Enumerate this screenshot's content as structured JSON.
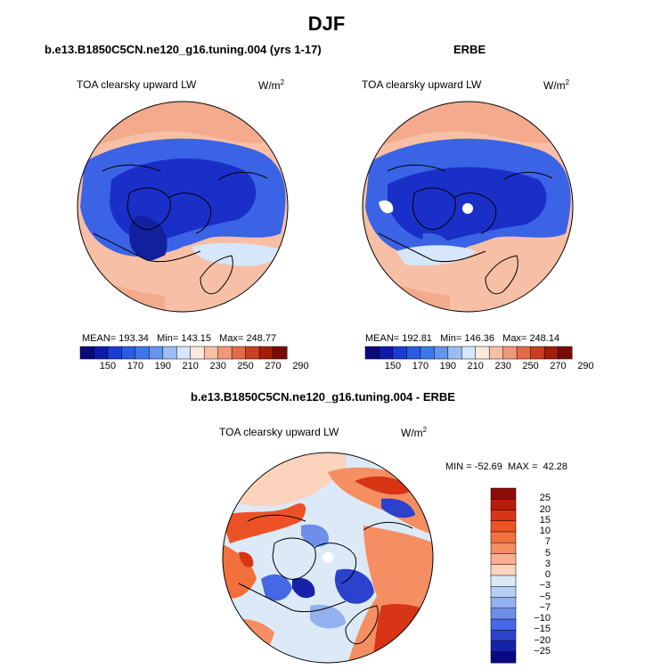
{
  "figure": {
    "title": "DJF",
    "panels": {
      "model": {
        "title": "b.e13.B1850C5CN.ne120_g16.tuning.004 (yrs 1-17)",
        "variable": "TOA clearsky upward LW",
        "units_text": "W/m",
        "units_exp": "2",
        "stats": {
          "mean_label": "MEAN=",
          "mean": "193.34",
          "min_label": "Min=",
          "min": "143.15",
          "max_label": "Max=",
          "max": "248.77"
        }
      },
      "obs": {
        "title": "ERBE",
        "variable": "TOA clearsky upward LW",
        "units_text": "W/m",
        "units_exp": "2",
        "stats": {
          "mean_label": "MEAN=",
          "mean": "192.81",
          "min_label": "Min=",
          "min": "146.36",
          "max_label": "Max=",
          "max": "248.14"
        }
      },
      "diff": {
        "title": "b.e13.B1850C5CN.ne120_g16.tuning.004 - ERBE",
        "variable": "TOA clearsky upward LW",
        "units_text": "W/m",
        "units_exp": "2",
        "stats": {
          "min_label": "MIN =",
          "min": "-52.69",
          "max_label": "MAX =",
          "max": "42.28"
        }
      }
    },
    "colorbar_fields": {
      "ticks": [
        "150",
        "170",
        "190",
        "210",
        "230",
        "250",
        "270",
        "290"
      ],
      "colors": [
        "#0a0a7a",
        "#0e1aa8",
        "#1a3cd0",
        "#2a5be0",
        "#3e78e8",
        "#6494ec",
        "#9cbcf2",
        "#d6e6fb",
        "#fde8dc",
        "#f7c0a6",
        "#f09878",
        "#e46a48",
        "#c8401e",
        "#a01e0a",
        "#780c04"
      ]
    },
    "colorbar_diff": {
      "ticks": [
        "25",
        "20",
        "15",
        "10",
        "7",
        "5",
        "3",
        "0",
        "−3",
        "−5",
        "−7",
        "−10",
        "−15",
        "−20",
        "−25"
      ],
      "colors": [
        "#8c0c06",
        "#b81c0a",
        "#d83416",
        "#ec5226",
        "#f2703c",
        "#f58e62",
        "#f8b08e",
        "#fbd2bc",
        "#dceaf8",
        "#b8cef4",
        "#94b0ee",
        "#6e8eea",
        "#4668e4",
        "#2a42cc",
        "#1622a8",
        "#0a0a80"
      ]
    },
    "colors": {
      "deep_blue": "#1a2fc8",
      "mid_blue": "#3b63e6",
      "light_blue": "#9cbcf2",
      "peach": "#f7c0a6",
      "salmon": "#f09878",
      "red": "#d83416",
      "pole_marker": "#ffffff"
    }
  }
}
